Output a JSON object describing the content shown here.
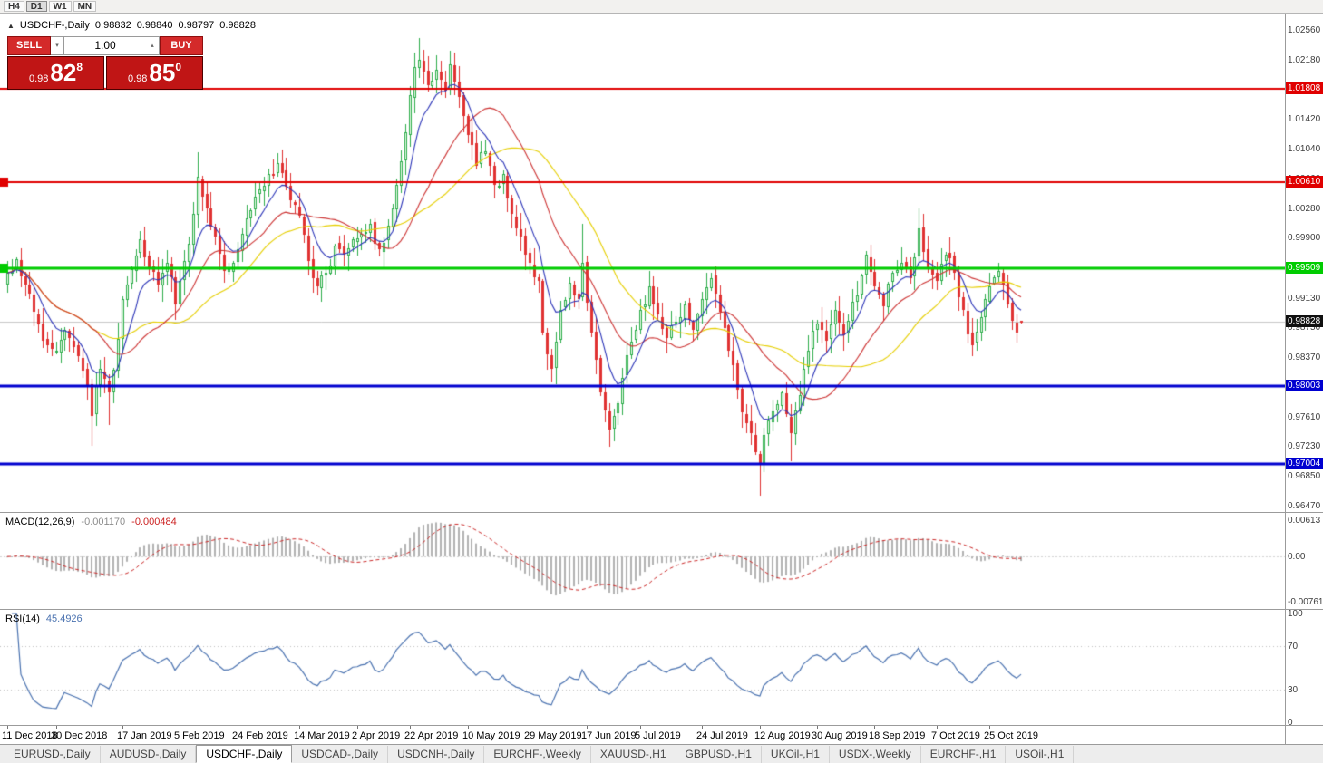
{
  "toolbar": {
    "timeframes": [
      {
        "label": "H4",
        "active": false
      },
      {
        "label": "D1",
        "active": true
      },
      {
        "label": "W1",
        "active": false
      },
      {
        "label": "MN",
        "active": false
      }
    ]
  },
  "chart_header": {
    "collapse_icon": "▲",
    "symbol_title": "USDCHF-,Daily",
    "open": "0.98832",
    "high": "0.98840",
    "low": "0.98797",
    "close": "0.98828"
  },
  "trade_panel": {
    "sell_label": "SELL",
    "buy_label": "BUY",
    "volume": "1.00",
    "spinner_down": "▾",
    "spinner_up": "▴",
    "sell_price": {
      "base": "0.98",
      "big": "82",
      "sup": "8"
    },
    "buy_price": {
      "base": "0.98",
      "big": "85",
      "sup": "0"
    }
  },
  "chart_data": {
    "type": "candlestick",
    "symbol": "USDCHF",
    "timeframe": "Daily",
    "title": "USDCHF-,Daily",
    "y_axis": {
      "min": 0.9647,
      "max": 1.0256
    },
    "y_ticks": [
      "1.02560",
      "1.02180",
      "1.01800",
      "1.01420",
      "1.01040",
      "1.00660",
      "1.00280",
      "0.99900",
      "0.99510",
      "0.99130",
      "0.98750",
      "0.98370",
      "0.97990",
      "0.97610",
      "0.97230",
      "0.96850",
      "0.96470"
    ],
    "levels": [
      {
        "label": "1.01808",
        "value": 1.01808,
        "color": "#e00000",
        "width": 2,
        "handle": false,
        "name": "resistance-line-upper"
      },
      {
        "label": "1.00610",
        "value": 1.0061,
        "color": "#e00000",
        "width": 2,
        "handle": true,
        "name": "resistance-line-mid"
      },
      {
        "label": "0.99509",
        "value": 0.99509,
        "color": "#00cc00",
        "width": 3,
        "handle": true,
        "name": "pivot-line-green"
      },
      {
        "label": "0.98003",
        "value": 0.98003,
        "color": "#0000d0",
        "width": 3,
        "handle": false,
        "name": "support-line-upper"
      },
      {
        "label": "0.97004",
        "value": 0.97004,
        "color": "#0000d0",
        "width": 3,
        "handle": false,
        "name": "support-line-lower"
      }
    ],
    "current_price": {
      "label": "0.98828",
      "value": 0.98828,
      "badge_color": "#101010"
    },
    "x_labels": [
      {
        "text": "11 Dec 2018",
        "index": 0
      },
      {
        "text": "30 Dec 2018",
        "index": 11
      },
      {
        "text": "17 Jan 2019",
        "index": 26
      },
      {
        "text": "5 Feb 2019",
        "index": 39
      },
      {
        "text": "24 Feb 2019",
        "index": 52
      },
      {
        "text": "14 Mar 2019",
        "index": 66
      },
      {
        "text": "2 Apr 2019",
        "index": 79
      },
      {
        "text": "22 Apr 2019",
        "index": 91
      },
      {
        "text": "10 May 2019",
        "index": 104
      },
      {
        "text": "29 May 2019",
        "index": 118
      },
      {
        "text": "17 Jun 2019",
        "index": 131
      },
      {
        "text": "5 Jul 2019",
        "index": 143
      },
      {
        "text": "24 Jul 2019",
        "index": 157
      },
      {
        "text": "12 Aug 2019",
        "index": 170
      },
      {
        "text": "30 Aug 2019",
        "index": 183
      },
      {
        "text": "18 Sep 2019",
        "index": 196
      },
      {
        "text": "7 Oct 2019",
        "index": 210
      },
      {
        "text": "25 Oct 2019",
        "index": 222
      }
    ],
    "candles": {
      "count": 230,
      "anchors": [
        [
          0,
          0.9945
        ],
        [
          2,
          0.9962
        ],
        [
          4,
          0.993
        ],
        [
          6,
          0.9895
        ],
        [
          8,
          0.9858
        ],
        [
          11,
          0.9845
        ],
        [
          13,
          0.9872
        ],
        [
          16,
          0.9838
        ],
        [
          18,
          0.98
        ],
        [
          19,
          0.9762
        ],
        [
          20,
          0.98
        ],
        [
          21,
          0.9822
        ],
        [
          23,
          0.9792
        ],
        [
          25,
          0.986
        ],
        [
          26,
          0.9912
        ],
        [
          28,
          0.995
        ],
        [
          30,
          0.9988
        ],
        [
          32,
          0.9952
        ],
        [
          34,
          0.993
        ],
        [
          36,
          0.9958
        ],
        [
          38,
          0.9905
        ],
        [
          40,
          0.996
        ],
        [
          42,
          1.002
        ],
        [
          43,
          1.0068
        ],
        [
          45,
          1.0028
        ],
        [
          47,
          0.9992
        ],
        [
          49,
          0.9948
        ],
        [
          51,
          0.9958
        ],
        [
          53,
          0.9995
        ],
        [
          55,
          1.0025
        ],
        [
          57,
          1.0052
        ],
        [
          59,
          1.0072
        ],
        [
          61,
          1.0085
        ],
        [
          63,
          1.0055
        ],
        [
          65,
          1.0032
        ],
        [
          66,
          1.0018
        ],
        [
          68,
          0.996
        ],
        [
          70,
          0.9928
        ],
        [
          72,
          0.9945
        ],
        [
          74,
          0.998
        ],
        [
          76,
          0.9968
        ],
        [
          78,
          0.9988
        ],
        [
          80,
          0.9995
        ],
        [
          82,
          1.0008
        ],
        [
          84,
          0.9975
        ],
        [
          86,
          1.0005
        ],
        [
          88,
          1.0058
        ],
        [
          90,
          1.0125
        ],
        [
          91,
          1.0172
        ],
        [
          92,
          1.0208
        ],
        [
          93,
          1.0218
        ],
        [
          95,
          1.0185
        ],
        [
          97,
          1.0205
        ],
        [
          99,
          1.0178
        ],
        [
          100,
          1.0212
        ],
        [
          102,
          1.017
        ],
        [
          104,
          1.0122
        ],
        [
          106,
          1.0082
        ],
        [
          108,
          1.01
        ],
        [
          110,
          1.0058
        ],
        [
          112,
          1.0072
        ],
        [
          114,
          1.002
        ],
        [
          116,
          0.9992
        ],
        [
          118,
          0.9958
        ],
        [
          120,
          0.9935
        ],
        [
          121,
          0.9868
        ],
        [
          123,
          0.9822
        ],
        [
          125,
          0.9898
        ],
        [
          127,
          0.9932
        ],
        [
          129,
          0.9912
        ],
        [
          130,
          0.9958
        ],
        [
          132,
          0.9868
        ],
        [
          134,
          0.9792
        ],
        [
          136,
          0.9745
        ],
        [
          138,
          0.9778
        ],
        [
          140,
          0.984
        ],
        [
          142,
          0.9872
        ],
        [
          143,
          0.9898
        ],
        [
          145,
          0.9928
        ],
        [
          147,
          0.9892
        ],
        [
          149,
          0.9862
        ],
        [
          151,
          0.9882
        ],
        [
          153,
          0.9905
        ],
        [
          155,
          0.9872
        ],
        [
          157,
          0.9912
        ],
        [
          159,
          0.9938
        ],
        [
          161,
          0.9895
        ],
        [
          163,
          0.9845
        ],
        [
          165,
          0.9795
        ],
        [
          167,
          0.9752
        ],
        [
          169,
          0.9715
        ],
        [
          170,
          0.9702
        ],
        [
          171,
          0.9738
        ],
        [
          173,
          0.9768
        ],
        [
          175,
          0.9792
        ],
        [
          177,
          0.974
        ],
        [
          179,
          0.9788
        ],
        [
          181,
          0.9845
        ],
        [
          183,
          0.988
        ],
        [
          185,
          0.9858
        ],
        [
          187,
          0.9898
        ],
        [
          189,
          0.9865
        ],
        [
          191,
          0.9908
        ],
        [
          193,
          0.9942
        ],
        [
          194,
          0.9968
        ],
        [
          196,
          0.9928
        ],
        [
          198,
          0.9902
        ],
        [
          200,
          0.9945
        ],
        [
          202,
          0.9958
        ],
        [
          204,
          0.9938
        ],
        [
          206,
          1.0002
        ],
        [
          208,
          0.9952
        ],
        [
          210,
          0.9935
        ],
        [
          212,
          0.9968
        ],
        [
          214,
          0.9945
        ],
        [
          216,
          0.9898
        ],
        [
          218,
          0.9852
        ],
        [
          220,
          0.9888
        ],
        [
          222,
          0.9928
        ],
        [
          224,
          0.9948
        ],
        [
          226,
          0.9905
        ],
        [
          228,
          0.9868
        ],
        [
          229,
          0.98828
        ]
      ],
      "wick_overrides": [
        [
          19,
          "low",
          0.9724
        ],
        [
          23,
          "low",
          0.975
        ],
        [
          43,
          "high",
          1.0099
        ],
        [
          61,
          "high",
          1.0098
        ],
        [
          93,
          "high",
          1.0246
        ],
        [
          100,
          "high",
          1.0228
        ],
        [
          130,
          "high",
          1.0008
        ],
        [
          136,
          "low",
          0.9722
        ],
        [
          170,
          "low",
          0.966
        ],
        [
          177,
          "low",
          0.9704
        ],
        [
          206,
          "high",
          1.0028
        ],
        [
          218,
          "low",
          0.9838
        ],
        [
          224,
          "high",
          0.9958
        ]
      ],
      "last_candle": {
        "open": 0.98832,
        "high": 0.9884,
        "low": 0.98797,
        "close": 0.98828
      }
    },
    "moving_averages": [
      {
        "period": 34,
        "type": "sma",
        "color": "#e6cf00"
      },
      {
        "period": 21,
        "type": "sma",
        "color": "#cd3333"
      },
      {
        "period": 8,
        "type": "ema",
        "color": "#2b34b8"
      }
    ],
    "colors": {
      "bull": "#2fae4d",
      "bull_fill": "#eafaea",
      "bear": "#e03232",
      "macd_hist": "#b2b2b2",
      "macd_signal": "#cc2a2a",
      "rsi_line": "#4a72b0",
      "current_price_line": "#c8c8c8"
    },
    "macd": {
      "label": "MACD(12,26,9)",
      "value_main": "-0.001170",
      "value_signal": "-0.000484",
      "axis": [
        "0.00613",
        "0.00",
        "-0.00761"
      ]
    },
    "rsi": {
      "label": "RSI(14)",
      "value": "45.4926",
      "axis": [
        "100",
        "70",
        "30",
        "0"
      ],
      "levels": [
        70,
        30
      ]
    }
  },
  "tabs": [
    {
      "label": "EURUSD-,Daily",
      "active": false
    },
    {
      "label": "AUDUSD-,Daily",
      "active": false
    },
    {
      "label": "USDCHF-,Daily",
      "active": true
    },
    {
      "label": "USDCAD-,Daily",
      "active": false
    },
    {
      "label": "USDCNH-,Daily",
      "active": false
    },
    {
      "label": "EURCHF-,Weekly",
      "active": false
    },
    {
      "label": "XAUUSD-,H1",
      "active": false
    },
    {
      "label": "GBPUSD-,H1",
      "active": false
    },
    {
      "label": "UKOil-,H1",
      "active": false
    },
    {
      "label": "USDX-,Weekly",
      "active": false
    },
    {
      "label": "EURCHF-,H1",
      "active": false
    },
    {
      "label": "USOil-,H1",
      "active": false
    }
  ]
}
